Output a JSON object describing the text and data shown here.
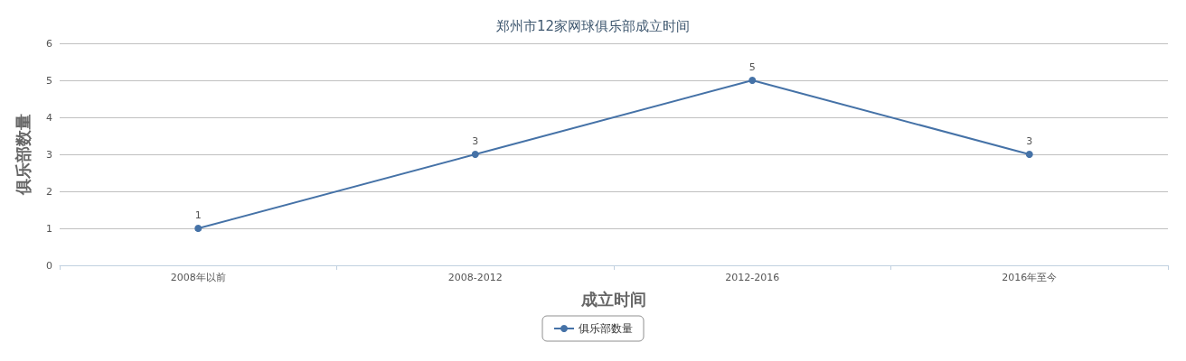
{
  "chart_data": {
    "type": "line",
    "title": "郑州市12家网球俱乐部成立时间",
    "xlabel": "成立时间",
    "ylabel": "俱乐部数量",
    "categories": [
      "2008年以前",
      "2008-2012",
      "2012-2016",
      "2016年至今"
    ],
    "series": [
      {
        "name": "俱乐部数量",
        "color": "#4572a7",
        "values": [
          1,
          3,
          5,
          3
        ]
      }
    ],
    "ylim": [
      0,
      6
    ],
    "yticks": [
      0,
      1,
      2,
      3,
      4,
      5,
      6
    ],
    "grid": "y",
    "legend": "bottom",
    "marker": "circle",
    "line_style": "solid",
    "data_labels": true
  }
}
